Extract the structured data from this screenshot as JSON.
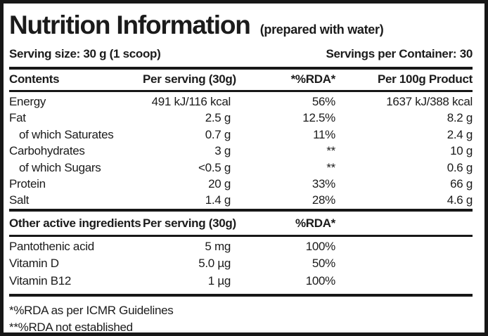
{
  "label": {
    "title": "Nutrition Information",
    "subtitle": "(prepared with water)",
    "serving_size": "Serving size: 30 g (1 scoop)",
    "servings_per_container": "Servings per Container: 30"
  },
  "main_table": {
    "headers": [
      "Contents",
      "Per serving (30g)",
      "*%RDA*",
      "Per 100g Product"
    ],
    "rows": [
      {
        "name": "Energy",
        "per_serving": "491 kJ/116 kcal",
        "rda": "56%",
        "per_100g": "1637 kJ/388 kcal"
      },
      {
        "name": "Fat",
        "per_serving": "2.5 g",
        "rda": "12.5%",
        "per_100g": "8.2 g"
      },
      {
        "name": "of which Saturates",
        "per_serving": "0.7 g",
        "rda": "11%",
        "per_100g": "2.4 g"
      },
      {
        "name": "Carbohydrates",
        "per_serving": "3 g",
        "rda": "**",
        "per_100g": "10 g"
      },
      {
        "name": "of which Sugars",
        "per_serving": "<0.5 g",
        "rda": "**",
        "per_100g": "0.6 g"
      },
      {
        "name": "Protein",
        "per_serving": "20 g",
        "rda": "33%",
        "per_100g": "66 g"
      },
      {
        "name": "Salt",
        "per_serving": "1.4 g",
        "rda": "28%",
        "per_100g": "4.6 g"
      }
    ]
  },
  "other_table": {
    "headers": [
      "Other active ingredients",
      "Per serving (30g)",
      "%RDA*"
    ],
    "rows": [
      {
        "name": "Pantothenic acid",
        "per_serving": "5 mg",
        "rda": "100%"
      },
      {
        "name": "Vitamin D",
        "per_serving": "5.0 µg",
        "rda": "50%"
      },
      {
        "name": "Vitamin B12",
        "per_serving": "1 µg",
        "rda": "100%"
      }
    ]
  },
  "footnotes": {
    "icmr": "*%RDA as per ICMR Guidelines",
    "not_established": "**%RDA not established"
  },
  "colors": {
    "text": "#1b1b1b",
    "border": "#171717",
    "background": "#ffffff"
  }
}
